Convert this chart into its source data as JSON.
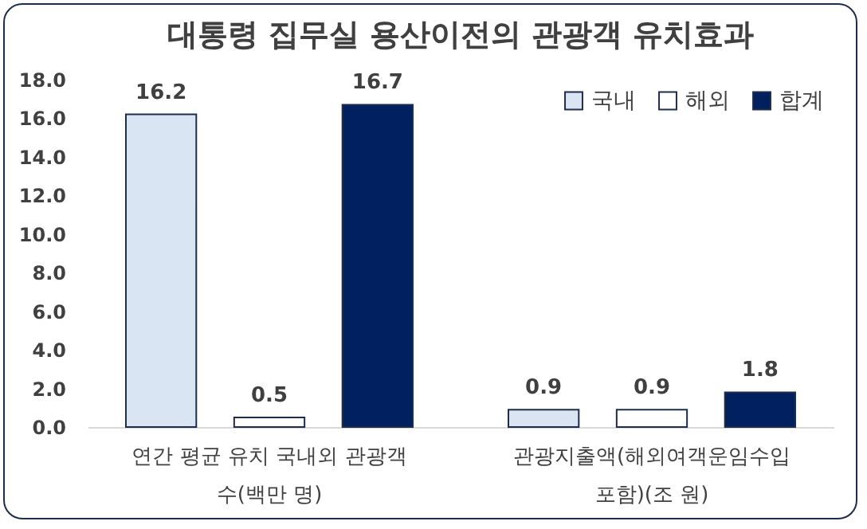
{
  "chart_data": {
    "type": "bar",
    "title": "대통령 집무실 용산이전의 관광객 유치효과",
    "categories": [
      "연간 평균 유치 국내외 관광객 수(백만 명)",
      "관광지출액(해외여객운임수입 포함)(조 원)"
    ],
    "series": [
      {
        "name": "국내",
        "color": "#dae5f4",
        "values": [
          16.2,
          0.9
        ]
      },
      {
        "name": "해외",
        "color": "#ffffff",
        "values": [
          0.5,
          0.9
        ]
      },
      {
        "name": "합계",
        "color": "#002060",
        "values": [
          16.7,
          1.8
        ]
      }
    ],
    "ylim": [
      0,
      18
    ],
    "yticks": [
      {
        "value": 0,
        "label": "0.0"
      },
      {
        "value": 2,
        "label": "2.0"
      },
      {
        "value": 4,
        "label": "4.0"
      },
      {
        "value": 6,
        "label": "6.0"
      },
      {
        "value": 8,
        "label": "8.0"
      },
      {
        "value": 10,
        "label": "10.0"
      },
      {
        "value": 12,
        "label": "12.0"
      },
      {
        "value": 14,
        "label": "14.0"
      },
      {
        "value": 16,
        "label": "16.0"
      },
      {
        "value": 18,
        "label": "18.0"
      }
    ],
    "grid": false,
    "legend": "top right",
    "data_labels": true
  }
}
